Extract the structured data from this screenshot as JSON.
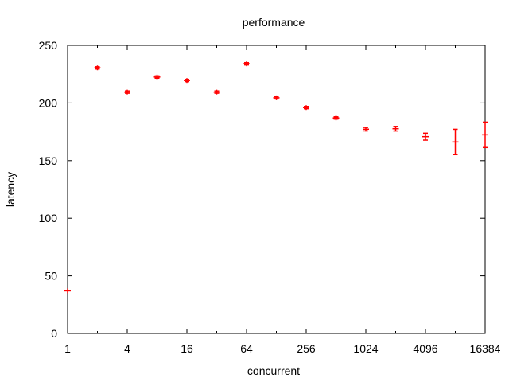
{
  "chart_data": {
    "type": "scatter",
    "title": "performance",
    "xlabel": "concurrent",
    "ylabel": "latency",
    "x_scale": "log2",
    "xlim": [
      1,
      16384
    ],
    "ylim": [
      0,
      250
    ],
    "x_ticks": [
      1,
      4,
      16,
      64,
      256,
      1024,
      4096,
      16384
    ],
    "y_ticks": [
      0,
      50,
      100,
      150,
      200,
      250
    ],
    "grid": false,
    "color": "#ff0000",
    "points": [
      {
        "x": 1,
        "y": 37,
        "err": 0
      },
      {
        "x": 2,
        "y": 230.5,
        "err": 1
      },
      {
        "x": 4,
        "y": 209.5,
        "err": 1
      },
      {
        "x": 8,
        "y": 222.5,
        "err": 1
      },
      {
        "x": 16,
        "y": 219.5,
        "err": 1
      },
      {
        "x": 32,
        "y": 209.5,
        "err": 1
      },
      {
        "x": 64,
        "y": 234,
        "err": 1
      },
      {
        "x": 128,
        "y": 204.5,
        "err": 1
      },
      {
        "x": 256,
        "y": 196,
        "err": 1
      },
      {
        "x": 512,
        "y": 187,
        "err": 1
      },
      {
        "x": 1024,
        "y": 177.3,
        "err": 1.5
      },
      {
        "x": 2048,
        "y": 177.7,
        "err": 2
      },
      {
        "x": 4096,
        "y": 170.8,
        "err": 3
      },
      {
        "x": 8192,
        "y": 166.2,
        "err": 11
      },
      {
        "x": 16384,
        "y": 172.4,
        "err": 11
      }
    ]
  }
}
